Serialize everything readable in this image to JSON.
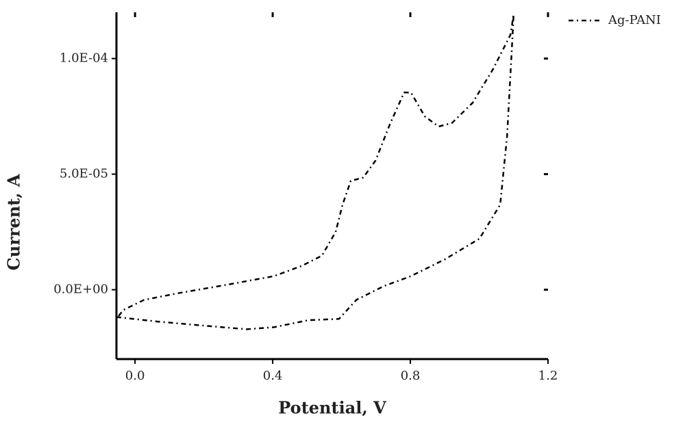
{
  "chart_data": {
    "type": "line",
    "xlabel": "Potential, V",
    "ylabel": "Current, A",
    "x": [
      -0.054,
      0.066,
      0.205,
      0.324,
      0.404,
      0.503,
      0.593,
      0.643,
      0.722,
      0.802,
      0.901,
      1.001,
      1.061,
      1.081,
      1.096,
      1.1,
      1.091,
      1.041,
      0.981,
      0.921,
      0.882,
      0.842,
      0.802,
      0.782,
      0.742,
      0.699,
      0.663,
      0.627,
      0.603,
      0.583,
      0.543,
      0.484,
      0.404,
      0.265,
      0.125,
      0.026,
      -0.034,
      -0.05
    ],
    "series": [
      {
        "name": "Ag-PANI",
        "color": "#000000",
        "values": [
          -1.18e-05,
          -1.38e-05,
          -1.56e-05,
          -1.71e-05,
          -1.62e-05,
          -1.32e-05,
          -1.26e-05,
          -4.4e-06,
          1.5e-06,
          5.9e-06,
          1.32e-05,
          2.21e-05,
          3.68e-05,
          6.62e-05,
          0.0001074,
          0.0001191,
          0.0001103,
          9.56e-05,
          8.09e-05,
          7.21e-05,
          7.06e-05,
          7.5e-05,
          8.53e-05,
          8.53e-05,
          7.21e-05,
          5.59e-05,
          4.85e-05,
          4.71e-05,
          3.68e-05,
          2.5e-05,
          1.47e-05,
          1.03e-05,
          5.9e-06,
          2.1e-06,
          -1.5e-06,
          -4.4e-06,
          -8.8e-06,
          -1.18e-05
        ]
      }
    ],
    "xlim": [
      -0.054,
      1.2
    ],
    "xticks": [
      {
        "value": 0,
        "label": "0.0"
      },
      0.4,
      0.8,
      1.2
    ],
    "ylim": [
      -3e-05,
      0.00012
    ],
    "yticks": [
      {
        "value": 0,
        "label": "0.0E+00"
      },
      {
        "value": 5e-05,
        "label": "5.0E-05"
      },
      {
        "value": 0.0001,
        "label": "1.0E-04"
      }
    ],
    "grid": false,
    "legend": "top-right"
  }
}
